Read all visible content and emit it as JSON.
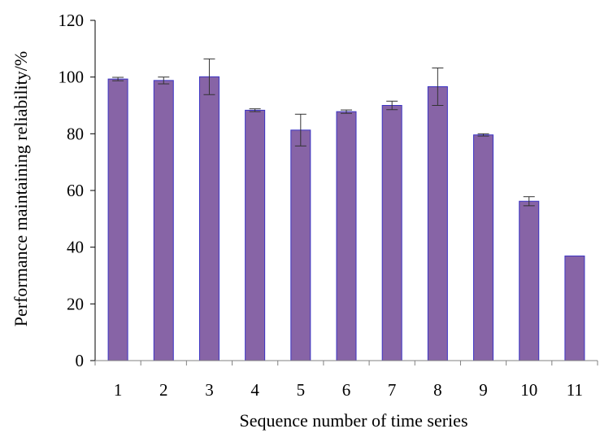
{
  "chart_data": {
    "type": "bar",
    "title": "",
    "xlabel": "Sequence number of time series",
    "ylabel": "Performance maintaining reliability/%",
    "categories": [
      "1",
      "2",
      "3",
      "4",
      "5",
      "6",
      "7",
      "8",
      "9",
      "10",
      "11"
    ],
    "values": [
      99.3,
      98.8,
      100.1,
      88.3,
      81.3,
      87.8,
      90.0,
      96.6,
      79.6,
      56.2,
      36.9
    ],
    "error_bars": [
      0.6,
      1.2,
      6.3,
      0.5,
      5.6,
      0.6,
      1.5,
      6.6,
      0.4,
      1.6,
      0
    ],
    "ylim": [
      0,
      120
    ],
    "yticks": [
      "0",
      "20",
      "40",
      "60",
      "80",
      "100",
      "120"
    ],
    "grid": false,
    "legend": "none",
    "bar_color": "#8764A6",
    "bar_edge_color": "#3B33C4"
  }
}
